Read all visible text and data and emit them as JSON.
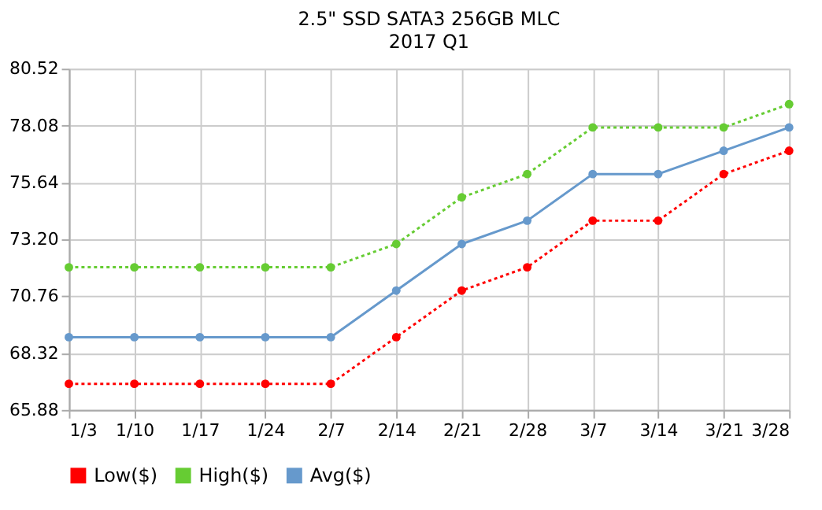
{
  "chart_data": {
    "type": "line",
    "title": "2.5\" SSD SATA3 256GB MLC",
    "subtitle": "2017 Q1",
    "categories": [
      "1/3",
      "1/10",
      "1/17",
      "1/24",
      "2/7",
      "2/14",
      "2/21",
      "2/28",
      "3/7",
      "3/14",
      "3/21",
      "3/28"
    ],
    "series": [
      {
        "name": "Low($)",
        "color": "#ff0000",
        "line_style": "dotted",
        "values": [
          67,
          67,
          67,
          67,
          67,
          69,
          71,
          72,
          74,
          74,
          76,
          77
        ]
      },
      {
        "name": "High($)",
        "color": "#66cc33",
        "line_style": "dotted",
        "values": [
          72,
          72,
          72,
          72,
          72,
          73,
          75,
          76,
          78,
          78,
          78,
          79
        ]
      },
      {
        "name": "Avg($)",
        "color": "#6699cc",
        "line_style": "solid",
        "values": [
          69,
          69,
          69,
          69,
          69,
          71,
          73,
          74,
          76,
          76,
          77,
          78
        ]
      }
    ],
    "ylim": [
      65.88,
      80.52
    ],
    "yticks": [
      65.88,
      68.32,
      70.76,
      {
        "value": 73.2,
        "label": "73.20"
      },
      75.64,
      78.08,
      80.52
    ],
    "grid": true,
    "legend": "bottom",
    "marker": "circle"
  }
}
